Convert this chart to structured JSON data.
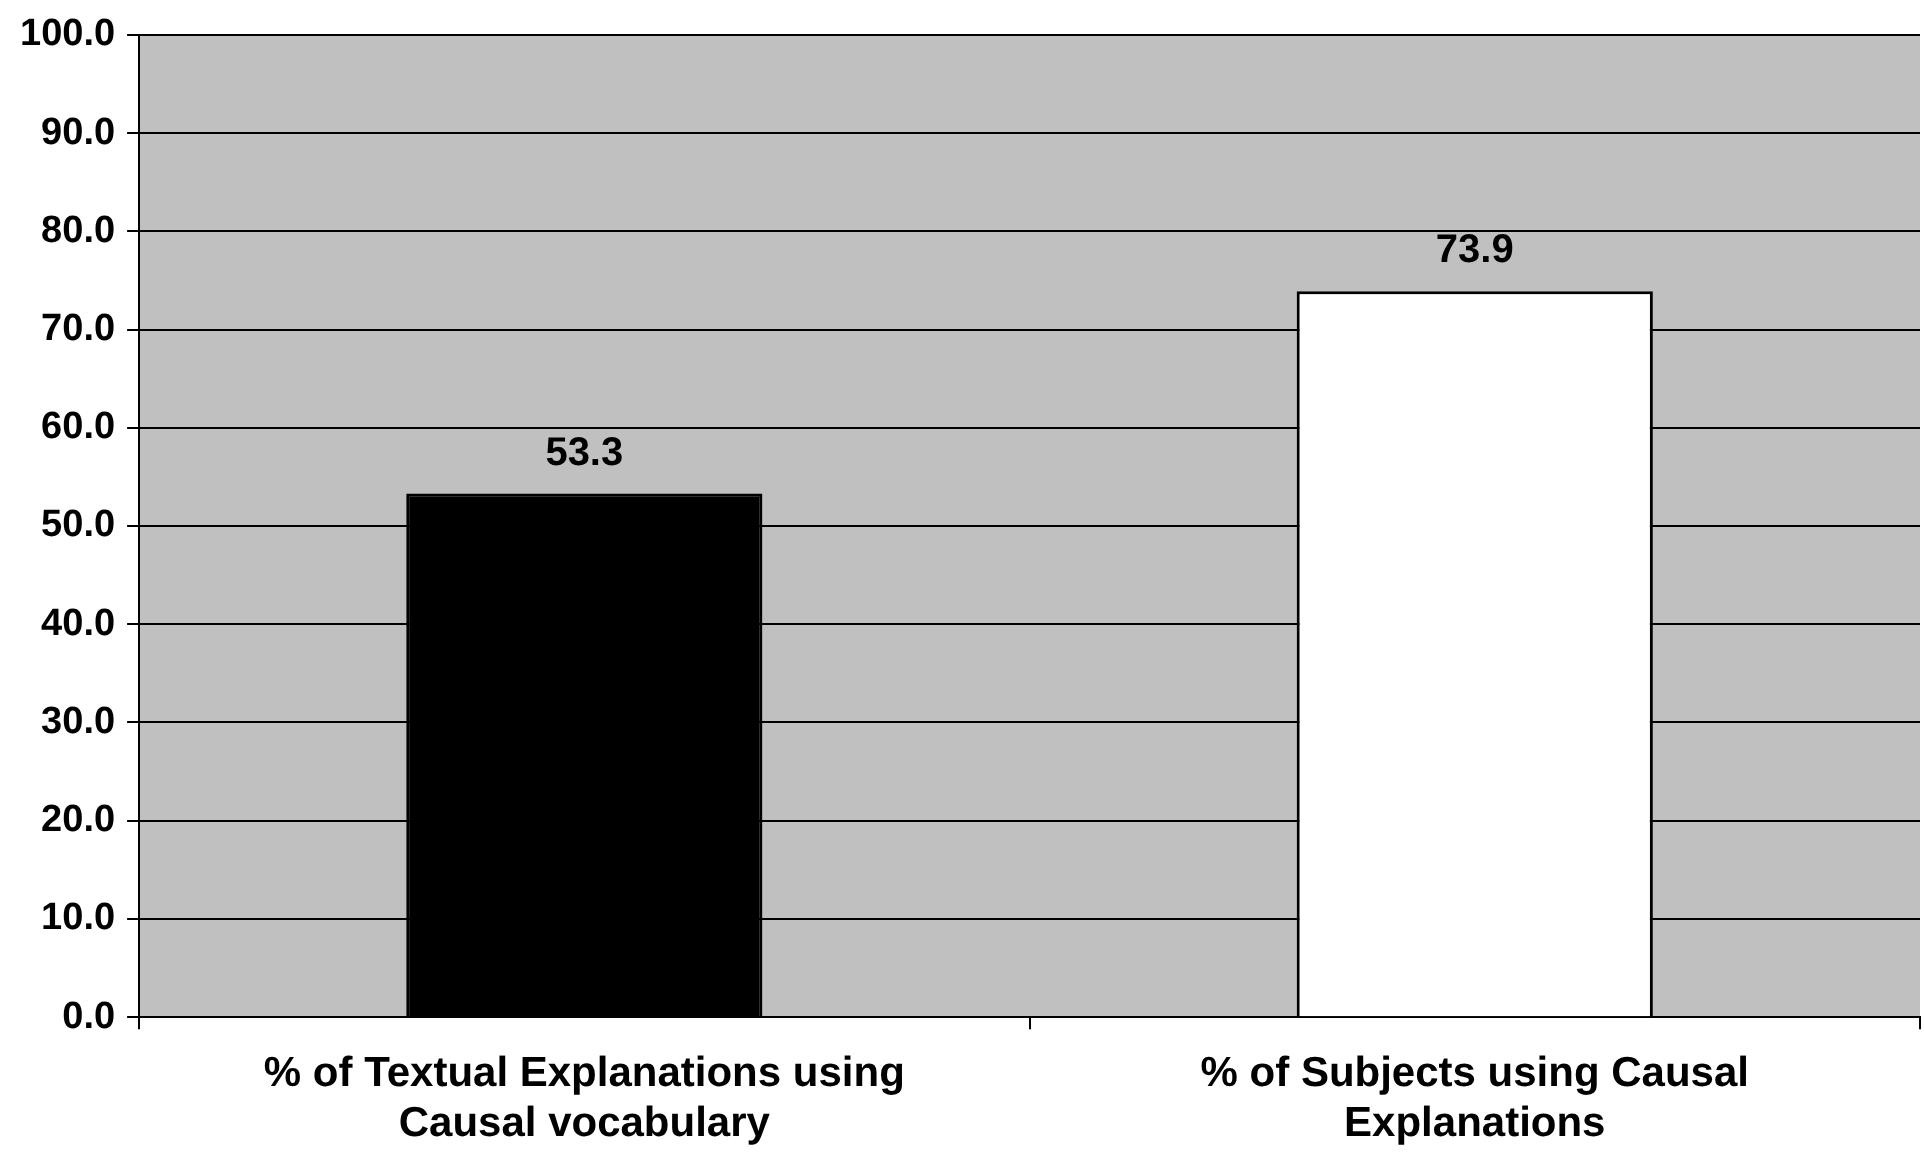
{
  "chart_data": {
    "type": "bar",
    "categories": [
      "% of Textual Explanations using Causal vocabulary",
      "% of Subjects using Causal Explanations"
    ],
    "values": [
      53.3,
      73.9
    ],
    "colors": [
      "#000000",
      "#ffffff"
    ],
    "ylim": [
      0,
      100
    ],
    "yticks": [
      {
        "value": 0,
        "label": "0.0"
      },
      {
        "value": 10,
        "label": "10.0"
      },
      {
        "value": 20,
        "label": "20.0"
      },
      {
        "value": 30,
        "label": "30.0"
      },
      {
        "value": 40,
        "label": "40.0"
      },
      {
        "value": 50,
        "label": "50.0"
      },
      {
        "value": 60,
        "label": "60.0"
      },
      {
        "value": 70,
        "label": "70.0"
      },
      {
        "value": 80,
        "label": "80.0"
      },
      {
        "value": 90,
        "label": "90.0"
      },
      {
        "value": 100,
        "label": "100.0"
      }
    ],
    "grid": "y",
    "data_labels": true
  }
}
